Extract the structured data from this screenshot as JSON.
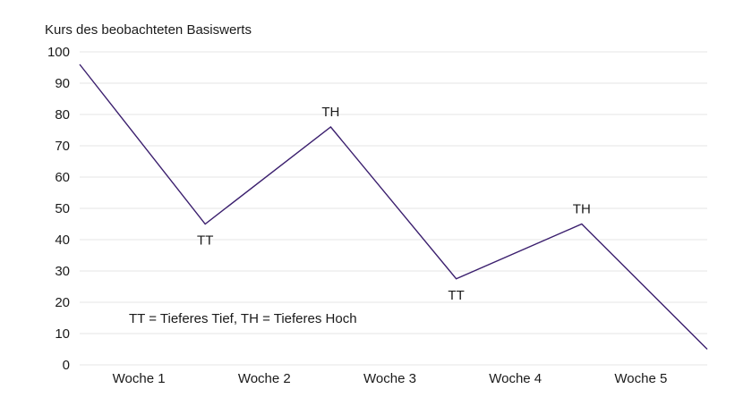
{
  "chart_data": {
    "type": "line",
    "title": "",
    "ylabel": "Kurs des beobachteten Basiswerts",
    "xlabel": "",
    "ylim": [
      0,
      100
    ],
    "yticks": [
      0,
      10,
      20,
      30,
      40,
      50,
      60,
      70,
      80,
      90,
      100
    ],
    "grid": true,
    "categories": [
      "Woche 1",
      "Woche 2",
      "Woche 3",
      "Woche 4",
      "Woche 5"
    ],
    "x": [
      0.0,
      1.0,
      2.0,
      3.0,
      4.0,
      5.0
    ],
    "series": [
      {
        "values": [
          96,
          45,
          76,
          27.5,
          45,
          5
        ]
      }
    ],
    "annotations": [
      {
        "text": "TT",
        "x": 1.0,
        "y": 45,
        "placement": "below"
      },
      {
        "text": "TH",
        "x": 2.0,
        "y": 76,
        "placement": "above"
      },
      {
        "text": "TT",
        "x": 3.0,
        "y": 27.5,
        "placement": "below"
      },
      {
        "text": "TH",
        "x": 4.0,
        "y": 45,
        "placement": "above"
      }
    ],
    "note": "TT = Tieferes Tief, TH = Tieferes Hoch",
    "colors": {
      "line": "#3b1f6e",
      "grid": "#e6e6e6"
    }
  }
}
